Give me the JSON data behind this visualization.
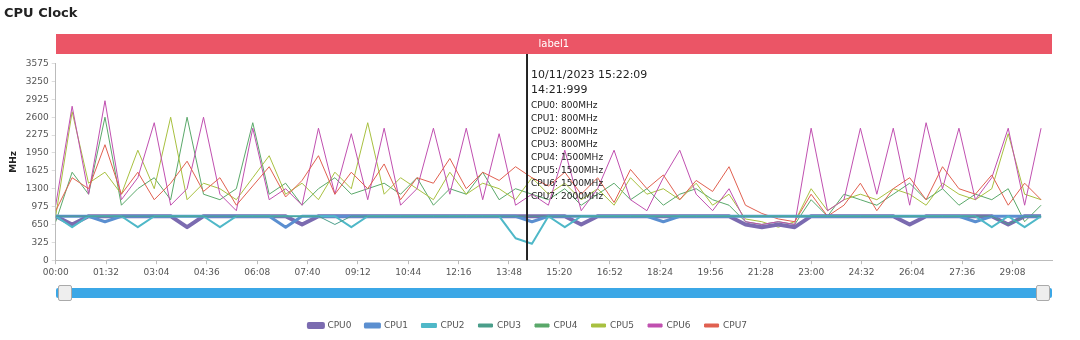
{
  "chart_data": {
    "type": "line",
    "title": "CPU Clock",
    "ylabel": "MHz",
    "legend": "bottom",
    "grid": false,
    "marker": "none",
    "line_style": "solid",
    "x": [
      0,
      30,
      60,
      90,
      120,
      150,
      180,
      210,
      240,
      270,
      300,
      330,
      360,
      390,
      420,
      450,
      480,
      510,
      540,
      570,
      600,
      630,
      660,
      690,
      720,
      750,
      780,
      810,
      840,
      870,
      900,
      930,
      960,
      990,
      1020,
      1050,
      1080,
      1110,
      1140,
      1170,
      1200,
      1230,
      1260,
      1290,
      1320,
      1350,
      1380,
      1410,
      1440,
      1470,
      1500,
      1530,
      1560,
      1590,
      1620,
      1650,
      1680,
      1710,
      1740,
      1770,
      1800
    ],
    "xlim": [
      0,
      1820
    ],
    "xticks": [
      {
        "value": 0,
        "label": "00:00"
      },
      {
        "value": 92,
        "label": "01:32"
      },
      {
        "value": 184,
        "label": "03:04"
      },
      {
        "value": 276,
        "label": "04:36"
      },
      {
        "value": 368,
        "label": "06:08"
      },
      {
        "value": 460,
        "label": "07:40"
      },
      {
        "value": 552,
        "label": "09:12"
      },
      {
        "value": 644,
        "label": "10:44"
      },
      {
        "value": 736,
        "label": "12:16"
      },
      {
        "value": 828,
        "label": "13:48"
      },
      {
        "value": 920,
        "label": "15:20"
      },
      {
        "value": 1012,
        "label": "16:52"
      },
      {
        "value": 1104,
        "label": "18:24"
      },
      {
        "value": 1196,
        "label": "19:56"
      },
      {
        "value": 1288,
        "label": "21:28"
      },
      {
        "value": 1380,
        "label": "23:00"
      },
      {
        "value": 1472,
        "label": "24:32"
      },
      {
        "value": 1564,
        "label": "26:04"
      },
      {
        "value": 1656,
        "label": "27:36"
      },
      {
        "value": 1748,
        "label": "29:08"
      }
    ],
    "ylim": [
      0,
      3575
    ],
    "yticks": [
      0,
      325,
      650,
      975,
      1300,
      1625,
      1950,
      2275,
      2600,
      2925,
      3250,
      3575
    ],
    "series": [
      {
        "name": "CPU0",
        "color": "#7b6bb0",
        "values": [
          800,
          650,
          800,
          800,
          800,
          800,
          800,
          800,
          600,
          800,
          800,
          800,
          800,
          800,
          800,
          650,
          800,
          800,
          800,
          800,
          800,
          800,
          800,
          800,
          800,
          800,
          800,
          800,
          800,
          800,
          800,
          800,
          650,
          800,
          800,
          800,
          800,
          800,
          800,
          800,
          800,
          800,
          650,
          600,
          650,
          600,
          800,
          800,
          800,
          800,
          800,
          800,
          650,
          800,
          800,
          800,
          800,
          800,
          650,
          800,
          800
        ]
      },
      {
        "name": "CPU1",
        "color": "#5b8fd0",
        "values": [
          800,
          800,
          800,
          700,
          800,
          800,
          800,
          800,
          800,
          800,
          800,
          800,
          800,
          800,
          600,
          800,
          800,
          800,
          800,
          800,
          800,
          800,
          800,
          800,
          800,
          800,
          800,
          800,
          800,
          700,
          800,
          800,
          800,
          800,
          800,
          800,
          800,
          700,
          800,
          800,
          800,
          800,
          800,
          800,
          800,
          800,
          800,
          800,
          800,
          800,
          800,
          800,
          800,
          800,
          800,
          800,
          700,
          800,
          800,
          800,
          800
        ]
      },
      {
        "name": "CPU2",
        "color": "#4fb8c8",
        "values": [
          800,
          600,
          800,
          800,
          800,
          600,
          800,
          800,
          800,
          800,
          600,
          800,
          800,
          800,
          800,
          800,
          800,
          800,
          600,
          800,
          800,
          800,
          800,
          800,
          800,
          800,
          800,
          800,
          400,
          300,
          800,
          600,
          800,
          800,
          800,
          800,
          800,
          800,
          800,
          800,
          800,
          800,
          800,
          800,
          800,
          800,
          800,
          800,
          800,
          800,
          800,
          800,
          800,
          800,
          800,
          800,
          800,
          600,
          800,
          600,
          800
        ]
      },
      {
        "name": "CPU3",
        "color": "#4a9e8a",
        "values": [
          800,
          800,
          800,
          800,
          800,
          800,
          800,
          800,
          800,
          800,
          800,
          800,
          800,
          800,
          800,
          800,
          800,
          650,
          800,
          800,
          800,
          800,
          800,
          800,
          800,
          800,
          800,
          800,
          800,
          800,
          800,
          800,
          800,
          800,
          800,
          800,
          800,
          800,
          800,
          800,
          800,
          800,
          800,
          800,
          800,
          800,
          800,
          800,
          800,
          800,
          800,
          800,
          800,
          800,
          800,
          800,
          800,
          800,
          650,
          800,
          800
        ]
      },
      {
        "name": "CPU4",
        "color": "#5aa86a",
        "values": [
          700,
          1600,
          1200,
          2600,
          1000,
          1300,
          1500,
          1100,
          2600,
          1200,
          1100,
          1300,
          2500,
          1200,
          1400,
          1000,
          1300,
          1500,
          1200,
          1300,
          1400,
          1200,
          1500,
          1000,
          1300,
          1200,
          1600,
          1100,
          1300,
          1200,
          1100,
          1300,
          1000,
          1200,
          1400,
          1100,
          1300,
          1000,
          1200,
          1300,
          1100,
          1000,
          700,
          650,
          700,
          650,
          1100,
          800,
          1200,
          1100,
          1000,
          1200,
          1400,
          1100,
          1300,
          1000,
          1200,
          1100,
          1300,
          700,
          1000
        ]
      },
      {
        "name": "CPU5",
        "color": "#a8c040",
        "values": [
          800,
          2700,
          1400,
          1600,
          1200,
          2000,
          1300,
          2600,
          1100,
          1400,
          1300,
          1100,
          1500,
          1900,
          1200,
          1400,
          1100,
          1600,
          1300,
          2500,
          1200,
          1500,
          1300,
          1100,
          1600,
          1200,
          1400,
          1300,
          1100,
          1500,
          1200,
          1400,
          1100,
          1300,
          1000,
          1500,
          1200,
          1300,
          1100,
          1400,
          1000,
          1200,
          750,
          700,
          600,
          700,
          1300,
          900,
          1100,
          1200,
          1100,
          1300,
          1200,
          1000,
          1400,
          1200,
          1100,
          1300,
          2300,
          1200,
          1100
        ]
      },
      {
        "name": "CPU6",
        "color": "#c050b0",
        "values": [
          1000,
          2800,
          1200,
          2900,
          1100,
          1500,
          2500,
          1000,
          1300,
          2600,
          1200,
          900,
          2400,
          1100,
          1300,
          1000,
          2400,
          1200,
          2300,
          1100,
          2400,
          1000,
          1300,
          2400,
          1200,
          2400,
          1100,
          2300,
          1000,
          1200,
          1000,
          2000,
          900,
          1300,
          2000,
          1100,
          900,
          1500,
          2000,
          1200,
          900,
          1300,
          700,
          650,
          700,
          650,
          2400,
          900,
          1100,
          2400,
          1200,
          2400,
          1000,
          2500,
          1300,
          2400,
          1100,
          1500,
          2400,
          1000,
          2400
        ]
      },
      {
        "name": "CPU7",
        "color": "#e06050",
        "values": [
          900,
          1500,
          1300,
          2100,
          1200,
          1600,
          1100,
          1400,
          1800,
          1250,
          1500,
          1000,
          1350,
          1700,
          1150,
          1450,
          1900,
          1200,
          1600,
          1300,
          1750,
          1100,
          1500,
          1400,
          1850,
          1300,
          1600,
          1450,
          1700,
          1500,
          1350,
          1600,
          1200,
          1500,
          1050,
          1650,
          1300,
          1550,
          1100,
          1450,
          1250,
          1700,
          1000,
          850,
          750,
          700,
          1200,
          800,
          1000,
          1400,
          900,
          1300,
          1500,
          1100,
          1700,
          1300,
          1200,
          1550,
          1000,
          1400,
          1100
        ]
      }
    ],
    "ref_lines": [
      {
        "axis": "x",
        "value": 861,
        "color": "#222222"
      }
    ],
    "annotations": [
      "label1",
      "10/11/2023 15:22:09",
      "14:21:999",
      "CPU0: 800MHz",
      "CPU1: 800MHz",
      "CPU2: 800MHz",
      "CPU3: 800MHz",
      "CPU4: 1500MHz",
      "CPU5: 1500MHz",
      "CPU6: 1500MHz",
      "CPU7: 2000MHz"
    ]
  }
}
